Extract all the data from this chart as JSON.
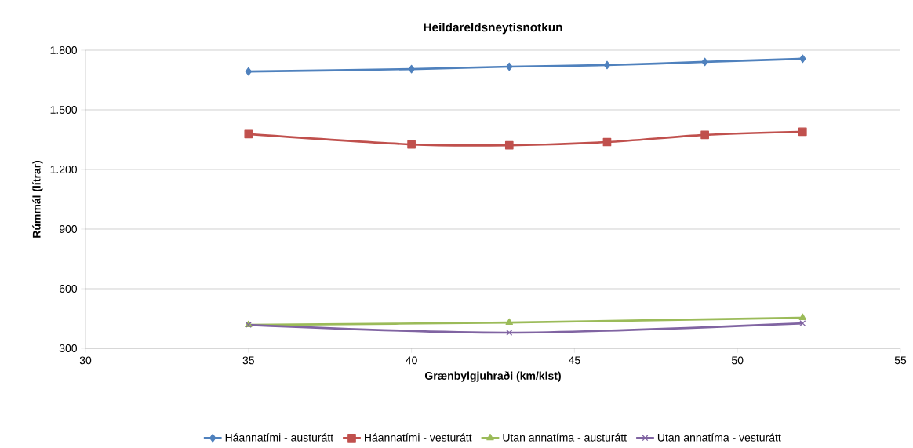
{
  "chart_data": {
    "type": "line",
    "title": "Heildareldsneytisnotkun",
    "xlabel": "Grænbylgjuhraði (km/klst)",
    "ylabel": "Rúmmál (lítrar)",
    "xlim": [
      30,
      55
    ],
    "xticks": [
      30,
      35,
      40,
      45,
      50,
      55
    ],
    "ylim": [
      300,
      1800
    ],
    "yticks": [
      {
        "value": 300,
        "label": "300"
      },
      {
        "value": 600,
        "label": "600"
      },
      {
        "value": 900,
        "label": "900"
      },
      {
        "value": 1200,
        "label": "1.200"
      },
      {
        "value": 1500,
        "label": "1.500"
      },
      {
        "value": 1800,
        "label": "1.800"
      }
    ],
    "grid": "y",
    "legend": "bottom",
    "line_style": "solid",
    "series": [
      {
        "name": "Háannatími - austurátt",
        "color": "#4f81bd",
        "marker": "diamond",
        "x": [
          35,
          40,
          43,
          46,
          49,
          52
        ],
        "values": [
          1693,
          1705,
          1717,
          1725,
          1741,
          1757
        ]
      },
      {
        "name": "Háannatími - vesturátt",
        "color": "#c0504d",
        "marker": "square",
        "x": [
          35,
          40,
          43,
          46,
          49,
          52
        ],
        "values": [
          1378,
          1326,
          1322,
          1338,
          1374,
          1390
        ]
      },
      {
        "name": "Utan annatíma - austurátt",
        "color": "#9bbb59",
        "marker": "triangle",
        "x": [
          35,
          43,
          52
        ],
        "values": [
          418,
          430,
          454
        ]
      },
      {
        "name": "Utan annatíma - vesturátt",
        "color": "#8064a2",
        "marker": "cross",
        "x": [
          35,
          43,
          52
        ],
        "values": [
          418,
          379,
          426
        ]
      }
    ]
  }
}
